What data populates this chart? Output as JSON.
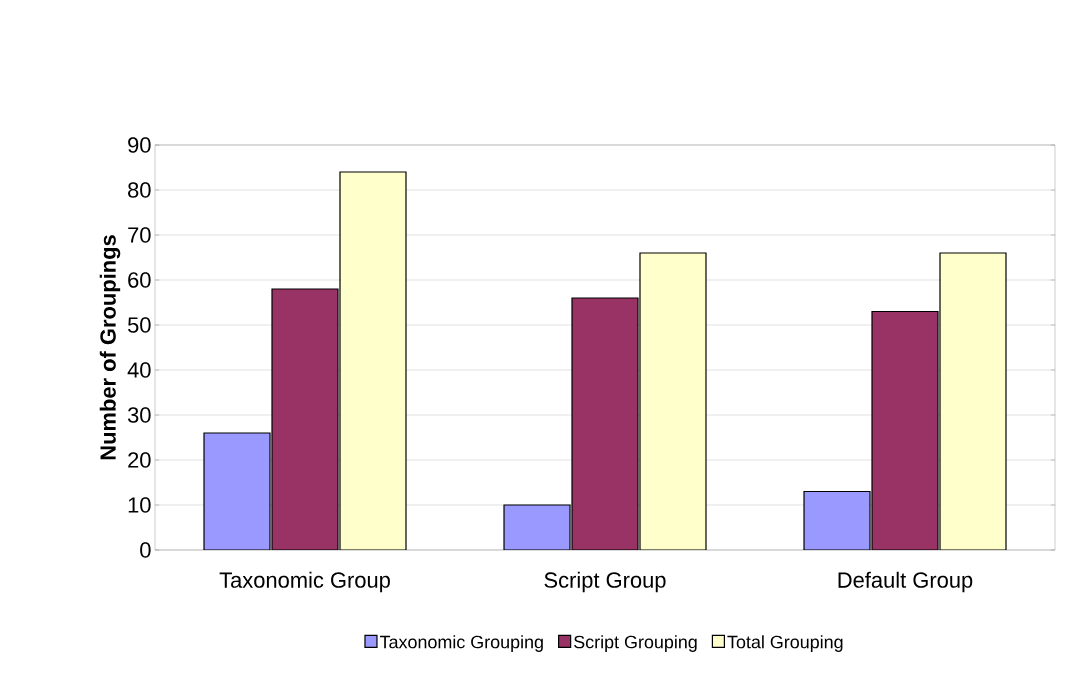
{
  "chart_data": {
    "type": "bar",
    "ylabel": "Number of Groupings",
    "categories": [
      "Taxonomic Group",
      "Script Group",
      "Default Group"
    ],
    "series": [
      {
        "name": "Taxonomic Grouping",
        "color": "#9999ff",
        "values": [
          26,
          10,
          13
        ]
      },
      {
        "name": "Script Grouping",
        "color": "#993366",
        "values": [
          58,
          56,
          53
        ]
      },
      {
        "name": "Total Grouping",
        "color": "#ffffcc",
        "values": [
          84,
          66,
          66
        ]
      }
    ],
    "ylim": [
      0,
      90
    ],
    "yticks": [
      0,
      10,
      20,
      30,
      40,
      50,
      60,
      70,
      80,
      90
    ],
    "grid": "y",
    "legend": "bottom"
  }
}
